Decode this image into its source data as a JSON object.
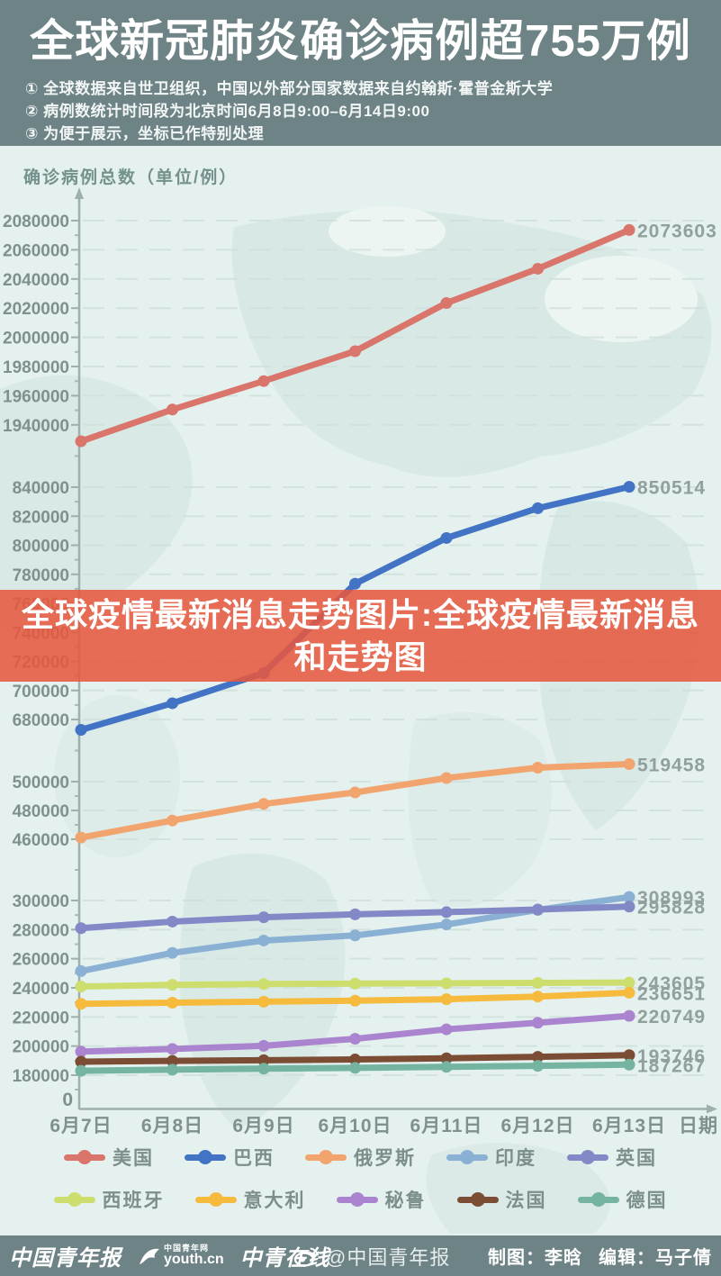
{
  "header": {
    "title": "全球新冠肺炎确诊病例超755万例",
    "notes": [
      "① 全球数据来自世卫组织，中国以外部分国家数据来自约翰斯·霍普金斯大学",
      "② 病例数统计时间段为北京时间6月8日9:00–6月14日9:00",
      "③ 为便于展示，坐标已作特别处理"
    ]
  },
  "overlay": {
    "line1": "全球疫情最新消息走势图片:全球疫情最新消息",
    "line2": "和走势图",
    "color": "#e7573e"
  },
  "chart_data": {
    "type": "line",
    "title": "确诊病例总数（单位/例）",
    "xlabel": "日期",
    "origin_label": "0",
    "categories": [
      "6月7日",
      "6月8日",
      "6月9日",
      "6月10日",
      "6月11日",
      "6月12日",
      "6月13日"
    ],
    "y_ticks": [
      2080000,
      2060000,
      2040000,
      2020000,
      2000000,
      1980000,
      1960000,
      1940000,
      840000,
      820000,
      800000,
      780000,
      760000,
      740000,
      720000,
      700000,
      680000,
      500000,
      480000,
      460000,
      300000,
      280000,
      260000,
      240000,
      220000,
      200000,
      180000
    ],
    "y_axis_blocks": [
      [
        1940000,
        2080000
      ],
      [
        680000,
        840000
      ],
      [
        460000,
        500000
      ],
      [
        180000,
        300000
      ]
    ],
    "grid": true,
    "legend_position": "bottom",
    "series": [
      {
        "name": "美国",
        "color": "#d9756b",
        "values": [
          1929000,
          1950500,
          1970000,
          1990500,
          2023500,
          2047000,
          2073603
        ],
        "end_label": "2073603"
      },
      {
        "name": "巴西",
        "color": "#4273c5",
        "values": [
          672800,
          691200,
          712000,
          773500,
          805000,
          825500,
          850514
        ],
        "end_label": "850514"
      },
      {
        "name": "俄罗斯",
        "color": "#f2a46e",
        "values": [
          461200,
          473000,
          484500,
          492500,
          504000,
          515500,
          519458
        ],
        "end_label": "519458"
      },
      {
        "name": "印度",
        "color": "#8ab1d4",
        "values": [
          251500,
          264000,
          272500,
          276000,
          283500,
          293500,
          308993
        ],
        "end_label": "308993"
      },
      {
        "name": "英国",
        "color": "#8388c6",
        "values": [
          281000,
          285500,
          288500,
          290500,
          292000,
          293800,
          295828
        ],
        "end_label": "295828"
      },
      {
        "name": "西班牙",
        "color": "#cede6e",
        "values": [
          240900,
          242100,
          242600,
          242900,
          243100,
          243400,
          243605
        ],
        "end_label": "243605"
      },
      {
        "name": "意大利",
        "color": "#f6ba3d",
        "values": [
          229000,
          229800,
          230500,
          231200,
          232200,
          234000,
          236651
        ],
        "end_label": "236651"
      },
      {
        "name": "秘鲁",
        "color": "#aa84ce",
        "values": [
          196200,
          198000,
          200200,
          205000,
          211500,
          216000,
          220749
        ],
        "end_label": "220749"
      },
      {
        "name": "法国",
        "color": "#7b4d34",
        "values": [
          189300,
          189800,
          190300,
          190800,
          191600,
          192600,
          193746
        ],
        "end_label": "193746"
      },
      {
        "name": "德国",
        "color": "#74b4a1",
        "values": [
          183000,
          183800,
          184500,
          185000,
          185700,
          186400,
          187267
        ],
        "end_label": "187267"
      }
    ]
  },
  "footer": {
    "logos": [
      "中国青年报",
      "中青在线"
    ],
    "youth_badge": "中国青年网",
    "youth_url": "youth.cn",
    "weibo": "@中国青年报",
    "credit_maker": "制图：李晗",
    "credit_editor": "编辑：马子倩"
  }
}
